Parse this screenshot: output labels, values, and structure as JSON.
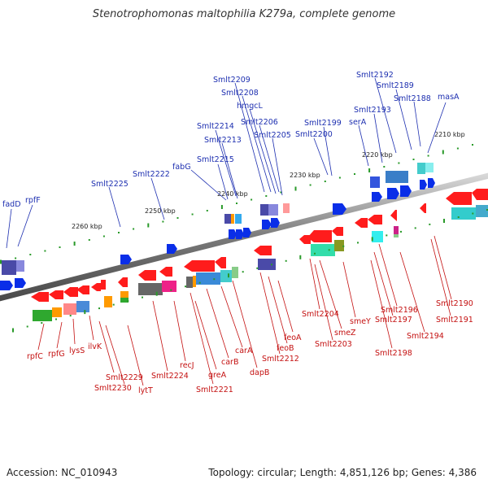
{
  "header": {
    "title": "Stenotrophomonas maltophilia K279a, complete genome"
  },
  "footer": {
    "accession": "Accession: NC_010943",
    "summary": "Topology: circular; Length: 4,851,126 bp; Genes: 4,386"
  },
  "colors": {
    "top_label": "#1d2fb0",
    "bottom_label": "#c41010",
    "backbone": "#8a8a8a",
    "forward_feature": "#0a2ee8",
    "reverse_feature": "#ff1c1c",
    "tick": "#2a9a2a"
  },
  "ticks": [
    "2210 kbp",
    "2220 kbp",
    "2230 kbp",
    "2240 kbp",
    "2250 kbp",
    "2260 kbp"
  ],
  "top_labels": [
    "Smlt2209",
    "Smlt2208",
    "hmgcL",
    "Smlt2206",
    "Smlt2205",
    "Smlt2214",
    "Smlt2213",
    "Smlt2215",
    "fabG",
    "Smlt2222",
    "Smlt2225",
    "fadD",
    "rpfF",
    "Smlt2199",
    "Smlt2200",
    "serA",
    "Smlt2193",
    "Smlt2192",
    "Smlt2189",
    "Smlt2188",
    "masA"
  ],
  "bottom_labels": [
    "rpfC",
    "rpfG",
    "lysS",
    "ilvK",
    "Smlt2229",
    "Smlt2230",
    "lytT",
    "Smlt2224",
    "recJ",
    "greA",
    "Smlt2221",
    "carB",
    "carA",
    "dapB",
    "Smlt2212",
    "feoB",
    "feoA",
    "Smlt2204",
    "smeZ",
    "Smlt2203",
    "smeY",
    "Smlt2196",
    "Smlt2197",
    "Smlt2198",
    "Smlt2194",
    "Smlt2190",
    "Smlt2191"
  ]
}
